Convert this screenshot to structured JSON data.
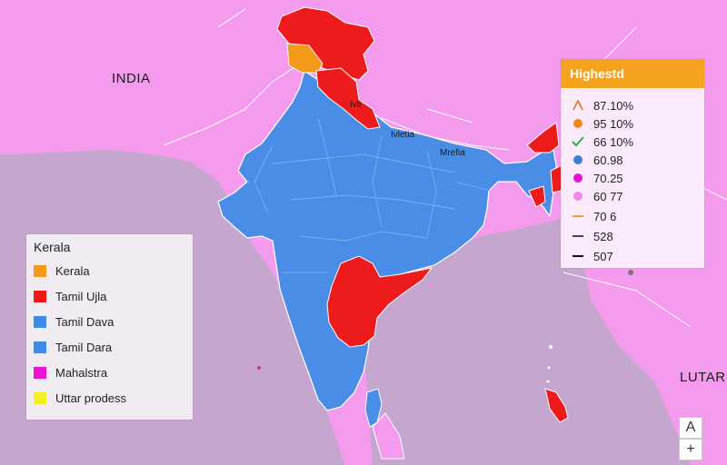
{
  "map": {
    "labels": {
      "country": "INDIA",
      "east": "LUTAR",
      "region_a": "Ivli",
      "region_b": "Ivletia",
      "region_c": "Mrefia"
    },
    "colors": {
      "background": "#f49bee",
      "neighbor_west": "#c5a6cf",
      "india": "#4a8de6",
      "highlight": "#ed1b1b",
      "orange": "#f49a1b",
      "border": "#ffffff"
    }
  },
  "legend_left": {
    "title": "Kerala",
    "items": [
      {
        "label": "Kerala",
        "color": "#f49a1b"
      },
      {
        "label": "Tamil Ujla",
        "color": "#ee1a1a"
      },
      {
        "label": "Tamil Dava",
        "color": "#3e8be8"
      },
      {
        "label": "Tamil Dara",
        "color": "#3e8be8"
      },
      {
        "label": "Mahalstra",
        "color": "#ee11d8"
      },
      {
        "label": "Uttar prodess",
        "color": "#f4ef22"
      }
    ]
  },
  "legend_right": {
    "title": "Highestd",
    "items": [
      {
        "value": "87.10%",
        "icon": "caret-up-icon",
        "color": "#e0771c"
      },
      {
        "value": "95 10%",
        "icon": "circle-icon",
        "color": "#ef8a1a"
      },
      {
        "value": "66 10%",
        "icon": "check-icon",
        "color": "#2bb33b"
      },
      {
        "value": "60.98",
        "icon": "circle-icon",
        "color": "#3a7fd8"
      },
      {
        "value": "70.25",
        "icon": "circle-icon",
        "color": "#e314d0"
      },
      {
        "value": "60 77",
        "icon": "circle-icon",
        "color": "#f08be8"
      },
      {
        "value": "70 6",
        "icon": "dash-icon",
        "color": "#f29a40"
      },
      {
        "value": "528",
        "icon": "dash-icon",
        "color": "#444444"
      },
      {
        "value": "507",
        "icon": "dash-icon",
        "color": "#111111"
      }
    ]
  },
  "controls": {
    "compass": "A",
    "zoom_in": "+"
  }
}
